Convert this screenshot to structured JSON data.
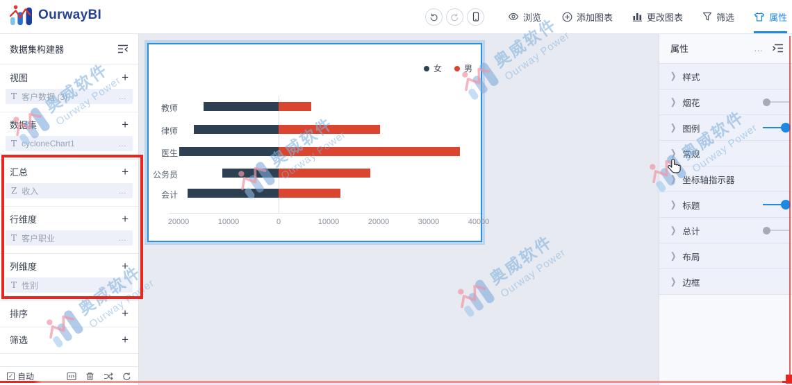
{
  "app": {
    "logo_text": "OurwayBI",
    "logo_icon": "ourway-logo-icon"
  },
  "toolbar": {
    "undo_icon": "undo-icon",
    "redo_icon": "redo-icon",
    "device_icon": "mobile-preview-icon",
    "items": [
      {
        "label": "浏览",
        "icon": "eye-icon",
        "active": false
      },
      {
        "label": "添加图表",
        "icon": "circle-plus-icon",
        "active": false
      },
      {
        "label": "更改图表",
        "icon": "bar-chart-icon",
        "active": false
      },
      {
        "label": "筛选",
        "icon": "funnel-icon",
        "active": false
      },
      {
        "label": "属性",
        "icon": "shirt-icon",
        "active": true
      }
    ]
  },
  "sidebar": {
    "title": "数据集构建器",
    "collapse_icon": "collapse-list-icon",
    "sections": [
      {
        "label": "视图",
        "chips": [
          {
            "icon": "T",
            "label": "客户数据 (3)"
          }
        ]
      },
      {
        "label": "数据集",
        "chips": [
          {
            "icon": "T",
            "label": "cycloneChart1"
          }
        ]
      },
      {
        "label": "汇总",
        "chips": [
          {
            "icon": "Z",
            "label": "收入"
          }
        ],
        "highlighted": true
      },
      {
        "label": "行维度",
        "chips": [
          {
            "icon": "T",
            "label": "客户职业"
          }
        ],
        "highlighted": true
      },
      {
        "label": "列维度",
        "chips": [
          {
            "icon": "T",
            "label": "性别"
          }
        ],
        "highlighted": true
      },
      {
        "label": "排序",
        "chips": []
      },
      {
        "label": "筛选",
        "chips": []
      }
    ],
    "bottom": {
      "auto_label": "自动",
      "auto_checked": true,
      "icons": [
        "code-window-icon",
        "trash-icon",
        "shuffle-icon",
        "refresh-icon"
      ]
    }
  },
  "properties_panel": {
    "title": "属性",
    "more_label": "…",
    "collapse_icon": "collapse-panel-icon",
    "rows": [
      {
        "label": "样式",
        "toggle": "none"
      },
      {
        "label": "烟花",
        "toggle": "off"
      },
      {
        "label": "图例",
        "toggle": "on"
      },
      {
        "label": "常规",
        "toggle": "none"
      },
      {
        "label": "坐标轴指示器",
        "toggle": "none"
      },
      {
        "label": "标题",
        "toggle": "on"
      },
      {
        "label": "总计",
        "toggle": "off"
      },
      {
        "label": "布局",
        "toggle": "none"
      },
      {
        "label": "边框",
        "toggle": "none"
      }
    ]
  },
  "watermark": {
    "line1": "奥威软件",
    "line2": "Ourway Power"
  },
  "chart_data": {
    "type": "bar",
    "variant": "diverging-horizontal (cyclone/tornado chart)",
    "categories": [
      "教师",
      "律师",
      "医生",
      "公务员",
      "会计"
    ],
    "series": [
      {
        "name": "女",
        "color": "#2c4052",
        "direction": "left",
        "values": [
          15000,
          17000,
          19800,
          11300,
          18200
        ]
      },
      {
        "name": "男",
        "color": "#d9452f",
        "direction": "right",
        "values": [
          6500,
          20300,
          36200,
          18300,
          12300
        ]
      }
    ],
    "x_axis": {
      "ticks": [
        -20000,
        -10000,
        0,
        10000,
        20000,
        30000,
        40000
      ],
      "labels": [
        "20000",
        "10000",
        "0",
        "10000",
        "20000",
        "30000",
        "40000"
      ],
      "min": -21800,
      "max": 41000
    },
    "legend_position": "top-right",
    "grid": false,
    "title": ""
  },
  "colors": {
    "accent": "#1e88e5",
    "annotation_red": "#ea241e",
    "female_bar": "#2c4052",
    "male_bar": "#d9452f",
    "canvas_bg": "#e8eaf1"
  }
}
